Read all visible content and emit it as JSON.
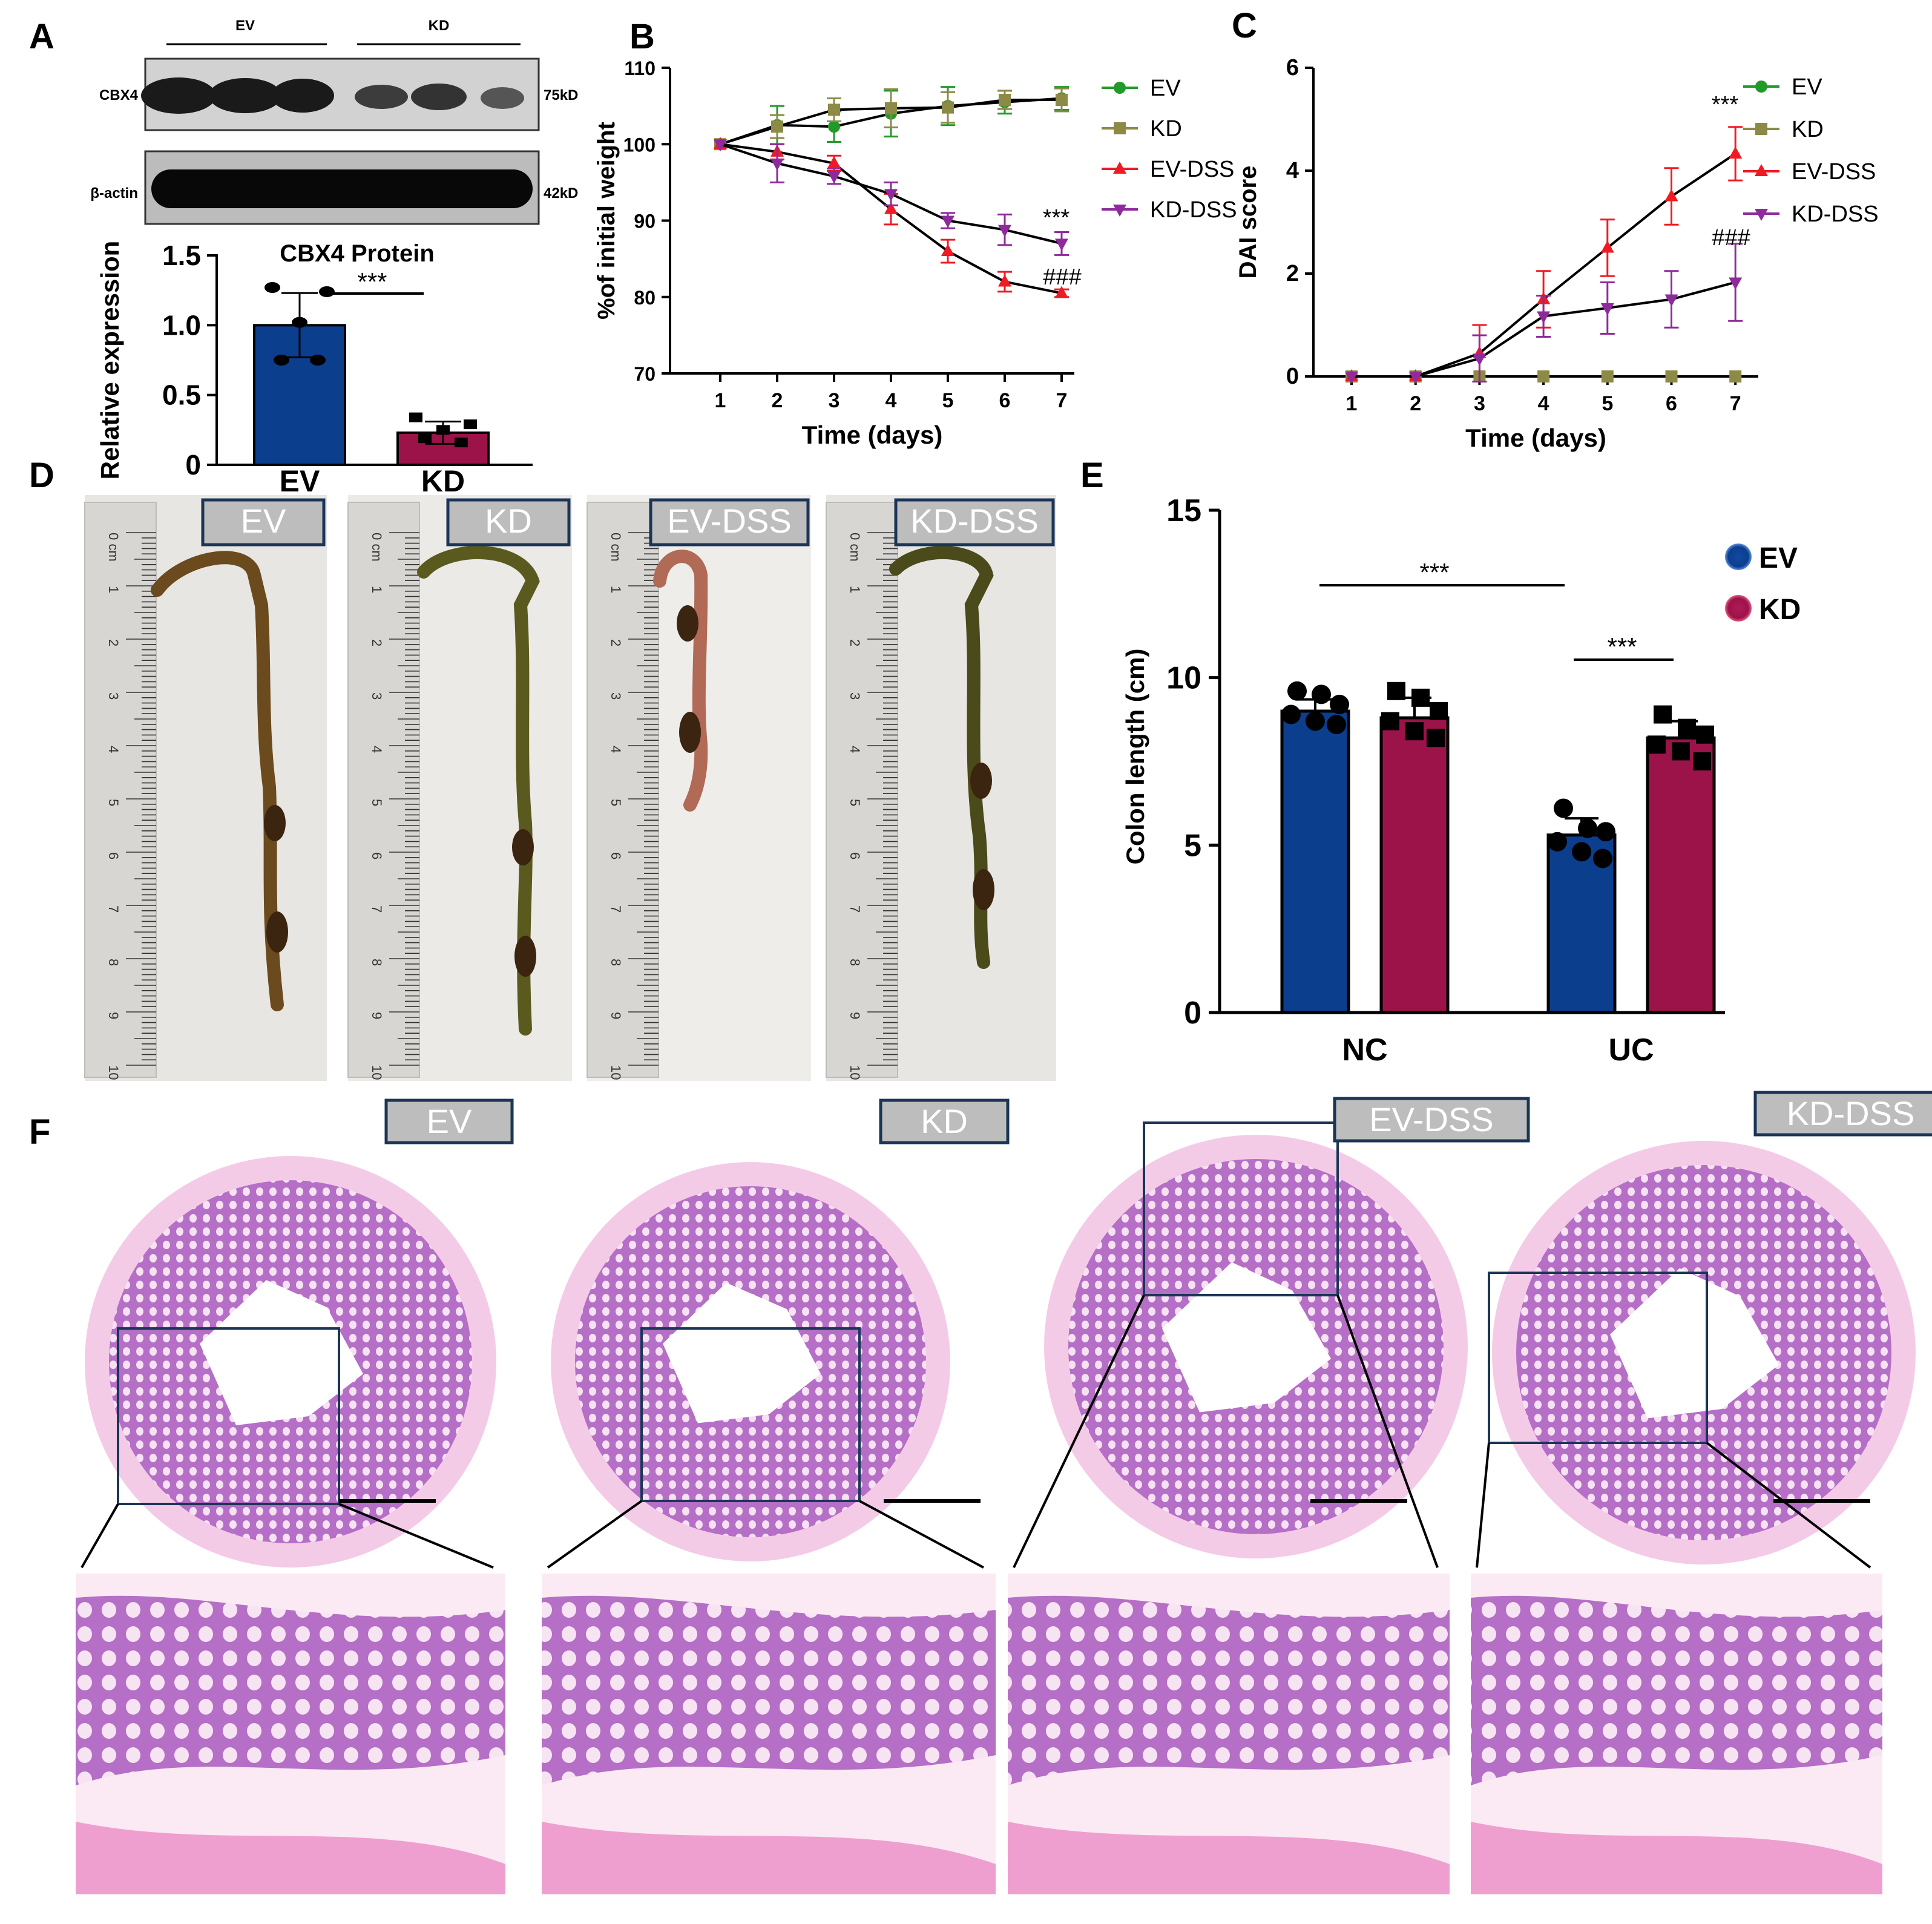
{
  "panels": {
    "A": {
      "letter": "A",
      "blot": {
        "group_labels": [
          "EV",
          "KD"
        ],
        "rows": [
          {
            "protein": "CBX4",
            "size": "75kD"
          },
          {
            "protein": "β-actin",
            "size": "42kD"
          }
        ]
      }
    },
    "B": {
      "letter": "B"
    },
    "C": {
      "letter": "C"
    },
    "D": {
      "letter": "D",
      "tags": [
        "EV",
        "KD",
        "EV-DSS",
        "KD-DSS"
      ],
      "ruler_ticks": [
        "0 cm",
        "1",
        "2",
        "3",
        "4",
        "5",
        "6",
        "7",
        "8",
        "9",
        "10"
      ]
    },
    "E": {
      "letter": "E"
    },
    "F": {
      "letter": "F",
      "tags": [
        "EV",
        "KD",
        "EV-DSS",
        "KD-DSS"
      ]
    }
  },
  "colors": {
    "navy": "#0c3e8e",
    "crimson": "#9c1349",
    "green": "#229a2a",
    "olive": "#8c8a45",
    "red": "#ee1b24",
    "purple": "#8e2a9c",
    "he_pink": "#f0b6dc",
    "he_purple": "#b56fc6",
    "tag_bg": "#bdbdbd",
    "tag_border": "#1b3556"
  },
  "chart_data": [
    {
      "panel": "A",
      "type": "bar",
      "title": "CBX4 Protein",
      "ylabel": "Relative expression",
      "categories": [
        "EV",
        "KD"
      ],
      "values": [
        1.0,
        0.23
      ],
      "errors": [
        0.23,
        0.08
      ],
      "points": [
        [
          1.27,
          1.24,
          1.02,
          0.75,
          0.75
        ],
        [
          0.34,
          0.29,
          0.25,
          0.19,
          0.16
        ]
      ],
      "colors": [
        "#0c3e8e",
        "#9c1349"
      ],
      "ylim": [
        0,
        1.5
      ],
      "yticks": [
        "0",
        "0.5",
        "1.0",
        "1.5"
      ],
      "significance": "***"
    },
    {
      "panel": "B",
      "type": "line",
      "xlabel": "Time (days)",
      "ylabel": "%of initial weight",
      "x": [
        1,
        2,
        3,
        4,
        5,
        6,
        7
      ],
      "ylim": [
        70,
        110
      ],
      "yticks": [
        "70",
        "80",
        "90",
        "100",
        "110"
      ],
      "series": [
        {
          "name": "EV",
          "values": [
            100,
            102.5,
            102.3,
            104,
            105,
            105.5,
            106
          ],
          "errors": [
            0,
            2.5,
            2,
            3,
            2.5,
            1.5,
            1.5
          ],
          "color": "#229a2a",
          "marker": "circle"
        },
        {
          "name": "KD",
          "values": [
            100,
            102.3,
            104.5,
            104.7,
            104.8,
            105.8,
            105.8
          ],
          "errors": [
            0,
            1.5,
            1.5,
            2.5,
            2,
            1.2,
            1.5
          ],
          "color": "#8c8a45",
          "marker": "square"
        },
        {
          "name": "EV-DSS",
          "values": [
            100,
            99,
            97.5,
            91.5,
            86,
            82,
            80.5
          ],
          "errors": [
            0,
            1,
            1,
            2,
            1.5,
            1.3,
            0.5
          ],
          "color": "#ee1b24",
          "marker": "triangle-up"
        },
        {
          "name": "KD-DSS",
          "values": [
            100,
            97.5,
            95.8,
            93.5,
            90,
            88.8,
            87
          ],
          "errors": [
            0,
            2.5,
            1,
            1.5,
            1,
            2,
            1.5
          ],
          "color": "#8e2a9c",
          "marker": "triangle-down"
        }
      ],
      "annotations": [
        "***",
        "###"
      ],
      "legend": "right"
    },
    {
      "panel": "C",
      "type": "line",
      "xlabel": "Time (days)",
      "ylabel": "DAI score",
      "x": [
        1,
        2,
        3,
        4,
        5,
        6,
        7
      ],
      "ylim": [
        0,
        6
      ],
      "yticks": [
        "0",
        "2",
        "4",
        "6"
      ],
      "series": [
        {
          "name": "EV",
          "values": [
            0,
            0,
            0,
            0,
            0,
            0,
            0
          ],
          "errors": [
            0,
            0,
            0,
            0,
            0,
            0,
            0
          ],
          "color": "#229a2a",
          "marker": "circle"
        },
        {
          "name": "KD",
          "values": [
            0,
            0,
            0,
            0,
            0,
            0,
            0
          ],
          "errors": [
            0,
            0,
            0,
            0,
            0,
            0,
            0
          ],
          "color": "#8c8a45",
          "marker": "square"
        },
        {
          "name": "EV-DSS",
          "values": [
            0,
            0,
            0.45,
            1.5,
            2.5,
            3.5,
            4.33
          ],
          "errors": [
            0,
            0,
            0.55,
            0.55,
            0.55,
            0.55,
            0.52
          ],
          "color": "#ee1b24",
          "marker": "triangle-up"
        },
        {
          "name": "KD-DSS",
          "values": [
            0,
            0,
            0.35,
            1.17,
            1.33,
            1.5,
            1.83
          ],
          "errors": [
            0,
            0,
            0.45,
            0.4,
            0.5,
            0.55,
            0.75
          ],
          "color": "#8e2a9c",
          "marker": "triangle-down"
        }
      ],
      "annotations": [
        "***",
        "###"
      ],
      "legend": "right"
    },
    {
      "panel": "E",
      "type": "bar",
      "ylabel": "Colon length (cm)",
      "categories": [
        "NC",
        "UC"
      ],
      "series": [
        {
          "name": "EV",
          "values": [
            9.0,
            5.3
          ],
          "errors": [
            0.35,
            0.5
          ],
          "points": [
            [
              9.6,
              9.5,
              9.2,
              8.9,
              8.7,
              8.6
            ],
            [
              6.1,
              5.5,
              5.4,
              5.1,
              4.8,
              4.6
            ]
          ],
          "color": "#0c3e8e"
        },
        {
          "name": "KD",
          "values": [
            8.8,
            8.2
          ],
          "errors": [
            0.6,
            0.5
          ],
          "points": [
            [
              9.6,
              9.4,
              9.0,
              8.7,
              8.4,
              8.2
            ],
            [
              8.9,
              8.5,
              8.3,
              8.0,
              7.8,
              7.5
            ]
          ],
          "color": "#9c1349"
        }
      ],
      "ylim": [
        0,
        15
      ],
      "yticks": [
        "0",
        "5",
        "10",
        "15"
      ],
      "significance": [
        "***",
        "***"
      ],
      "legend": "top-right"
    }
  ]
}
